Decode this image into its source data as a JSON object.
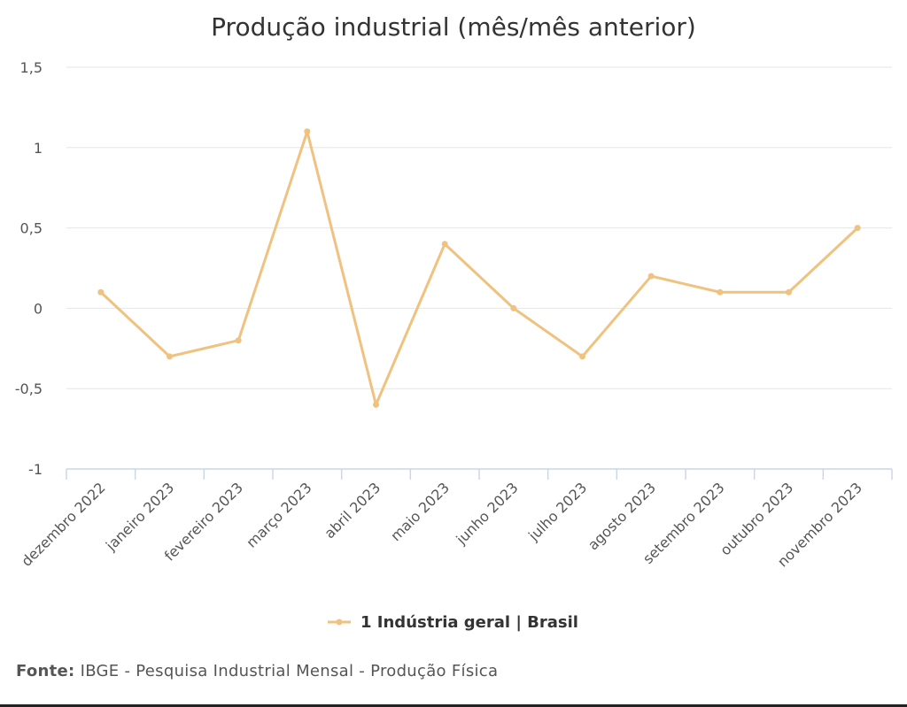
{
  "chart_data": {
    "type": "line",
    "title": "Produção industrial (mês/mês anterior)",
    "categories": [
      "dezembro 2022",
      "janeiro 2023",
      "fevereiro 2023",
      "março 2023",
      "abril 2023",
      "maio 2023",
      "junho 2023",
      "julho 2023",
      "agosto 2023",
      "setembro 2023",
      "outubro 2023",
      "novembro 2023"
    ],
    "series": [
      {
        "name": "1 Indústria geral | Brasil",
        "values": [
          0.1,
          -0.3,
          -0.2,
          1.1,
          -0.6,
          0.4,
          0.0,
          -0.3,
          0.2,
          0.1,
          0.1,
          0.5
        ],
        "color": "#f0c27f"
      }
    ],
    "yticks": [
      "1,5",
      "1",
      "0,5",
      "0",
      "-0,5",
      "-1"
    ],
    "ylim": [
      -1,
      1.5
    ],
    "grid": true,
    "legend_position": "bottom-center"
  },
  "source": {
    "label": "Fonte:",
    "text": "IBGE - Pesquisa Industrial Mensal - Produção Física"
  }
}
